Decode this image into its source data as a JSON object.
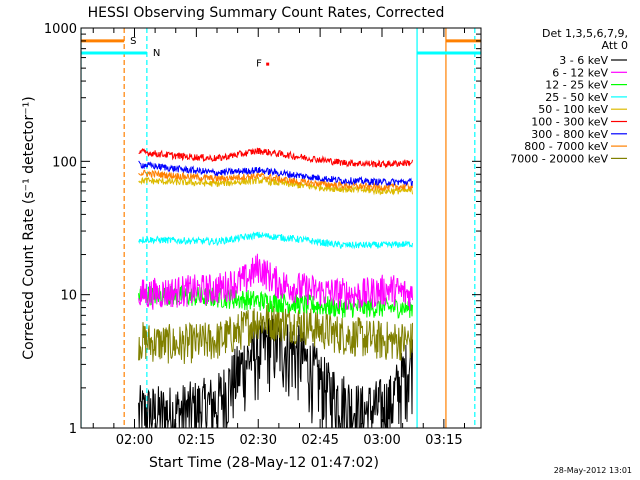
{
  "chart_data": {
    "type": "line",
    "title": "HESSI Observing Summary Count Rates, Corrected",
    "xlabel": "Start Time (28-May-12 01:47:02)",
    "ylabel": "Corrected Count Rate (s⁻¹ detector⁻¹)",
    "y_scale": "log",
    "ylim": [
      1,
      1000
    ],
    "xlim": [
      "01:47:02",
      "03:24:00"
    ],
    "x_ticks": [
      "02:00",
      "02:15",
      "02:30",
      "02:45",
      "03:00",
      "03:15"
    ],
    "y_ticks": [
      "1",
      "10",
      "100",
      "1000"
    ],
    "date_stamp": "28-May-2012 13:01",
    "legend": {
      "title": [
        "Det 1,3,5,6,7,9,",
        "Att 0"
      ],
      "position": "right"
    },
    "data_window": [
      "02:01:00",
      "03:07:30"
    ],
    "series": [
      {
        "name": "3 - 6 keV",
        "color": "#000000",
        "x": [
          "02:01",
          "02:10",
          "02:20",
          "02:27",
          "02:33",
          "02:40",
          "02:47",
          "02:55",
          "03:02",
          "03:07"
        ],
        "values": [
          1,
          1,
          1.2,
          2.5,
          3.5,
          2.8,
          1.5,
          1,
          1.2,
          2.5
        ]
      },
      {
        "name": "6 - 12 keV",
        "color": "#ff00ff",
        "x": [
          "02:01",
          "02:10",
          "02:20",
          "02:27",
          "02:30",
          "02:35",
          "02:45",
          "02:55",
          "03:02",
          "03:07"
        ],
        "values": [
          10,
          10.5,
          11,
          13,
          16,
          12,
          10.5,
          10,
          11,
          10
        ]
      },
      {
        "name": "12 - 25 keV",
        "color": "#00ff00",
        "x": [
          "02:01",
          "02:10",
          "02:20",
          "02:30",
          "02:40",
          "02:50",
          "03:00",
          "03:07"
        ],
        "values": [
          10,
          9.8,
          9.5,
          9,
          8.5,
          8,
          8,
          8
        ]
      },
      {
        "name": "25 - 50 keV",
        "color": "#00ffff",
        "x": [
          "02:01",
          "02:10",
          "02:20",
          "02:30",
          "02:40",
          "02:50",
          "03:00",
          "03:07"
        ],
        "values": [
          26,
          25.5,
          25,
          28,
          26,
          23.5,
          23.5,
          24
        ]
      },
      {
        "name": "50 - 100 keV",
        "color": "#ddbb00",
        "x": [
          "02:01",
          "02:10",
          "02:20",
          "02:30",
          "02:40",
          "02:50",
          "03:00",
          "03:07"
        ],
        "values": [
          72,
          70,
          68,
          72,
          66,
          62,
          60,
          60
        ]
      },
      {
        "name": "100 - 300 keV",
        "color": "#ff0000",
        "x": [
          "02:01",
          "02:10",
          "02:20",
          "02:30",
          "02:40",
          "02:50",
          "03:00",
          "03:07"
        ],
        "values": [
          118,
          110,
          105,
          120,
          108,
          98,
          95,
          98
        ]
      },
      {
        "name": "300 - 800 keV",
        "color": "#0000ff",
        "x": [
          "02:01",
          "02:10",
          "02:20",
          "02:30",
          "02:40",
          "02:50",
          "03:00",
          "03:07"
        ],
        "values": [
          95,
          88,
          82,
          86,
          78,
          72,
          70,
          70
        ]
      },
      {
        "name": "800 - 7000 keV",
        "color": "#ff8000",
        "x": [
          "02:01",
          "02:10",
          "02:20",
          "02:30",
          "02:40",
          "02:50",
          "03:00",
          "03:07"
        ],
        "values": [
          82,
          78,
          74,
          78,
          70,
          66,
          64,
          65
        ]
      },
      {
        "name": "7000 - 20000 keV",
        "color": "#808000",
        "x": [
          "02:01",
          "02:10",
          "02:20",
          "02:25",
          "02:30",
          "02:40",
          "02:50",
          "03:00",
          "03:07"
        ],
        "values": [
          4.5,
          4.2,
          4.5,
          5.2,
          6.5,
          6,
          5,
          4.5,
          4.5
        ]
      }
    ],
    "flags": [
      {
        "label": "S",
        "color": "#ff8000",
        "intervals": [
          [
            "01:47:02",
            "01:57:30"
          ],
          [
            "03:15:30",
            "03:24:00"
          ]
        ],
        "level": 800,
        "marker_at": "01:57:30"
      },
      {
        "label": "N",
        "color": "#00ffff",
        "intervals": [
          [
            "01:47:02",
            "02:03:00"
          ],
          [
            "03:08:30",
            "03:24:00"
          ]
        ],
        "level": 650,
        "marker_at": "02:03:00"
      },
      {
        "label": "F",
        "color": "#ff0000",
        "at": "02:29:30",
        "level": 550
      }
    ],
    "vertical_markers": [
      {
        "at": "01:47:02",
        "color": "#00ffff",
        "style": "solid"
      },
      {
        "at": "01:57:30",
        "color": "#ff8000",
        "style": "dashed"
      },
      {
        "at": "02:03:00",
        "color": "#00ffff",
        "style": "dashed"
      },
      {
        "at": "03:08:30",
        "color": "#00ffff",
        "style": "solid"
      },
      {
        "at": "03:15:30",
        "color": "#ff8000",
        "style": "solid"
      },
      {
        "at": "03:22:30",
        "color": "#00ffff",
        "style": "dashed"
      }
    ]
  }
}
